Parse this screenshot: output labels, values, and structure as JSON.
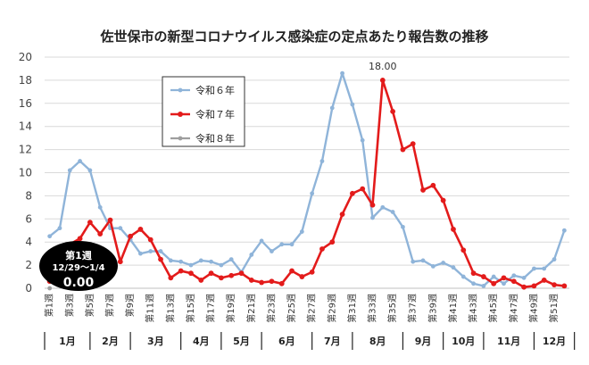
{
  "chart_data": {
    "type": "line",
    "title": "佐世保市の新型コロナウイルス感染症の定点あたり報告数の推移",
    "ylim": [
      0,
      20
    ],
    "yticks": [
      0,
      2,
      4,
      6,
      8,
      10,
      12,
      14,
      16,
      18,
      20
    ],
    "grid": true,
    "legend_position": "top-left",
    "x_tick_labels": [
      "第1週",
      "第3週",
      "第5週",
      "第7週",
      "第9週",
      "第11週",
      "第13週",
      "第15週",
      "第17週",
      "第19週",
      "第21週",
      "第23週",
      "第25週",
      "第27週",
      "第29週",
      "第31週",
      "第33週",
      "第35週",
      "第37週",
      "第39週",
      "第41週",
      "第43週",
      "第45週",
      "第47週",
      "第49週",
      "第51週"
    ],
    "months": [
      "1月",
      "2月",
      "3月",
      "4月",
      "5月",
      "6月",
      "7月",
      "8月",
      "9月",
      "10月",
      "11月",
      "12月"
    ],
    "month_week_bounds": [
      0,
      4.5,
      8.5,
      13.5,
      17.5,
      21.5,
      26.5,
      30.5,
      35.5,
      39.5,
      43.5,
      48.5,
      52.5
    ],
    "series": [
      {
        "name": "令和６年",
        "color": "#8fb4d9",
        "values": [
          4.5,
          5.2,
          10.2,
          11.0,
          10.2,
          7.0,
          5.2,
          5.2,
          4.2,
          3.0,
          3.2,
          3.2,
          2.4,
          2.3,
          2.0,
          2.4,
          2.3,
          2.0,
          2.5,
          1.4,
          2.9,
          4.1,
          3.2,
          3.8,
          3.8,
          4.9,
          8.2,
          11.0,
          15.6,
          18.6,
          15.9,
          12.8,
          6.1,
          7.0,
          6.6,
          5.3,
          2.3,
          2.4,
          1.9,
          2.2,
          1.8,
          1.0,
          0.4,
          0.2,
          1.0,
          0.4,
          1.1,
          0.9,
          1.7,
          1.7,
          2.5,
          5.0
        ]
      },
      {
        "name": "令和７年",
        "color": "#e31b1b",
        "values": [
          0.6,
          3.0,
          3.8,
          4.3,
          5.7,
          4.7,
          5.9,
          2.3,
          4.5,
          5.1,
          4.2,
          2.5,
          0.9,
          1.5,
          1.3,
          0.7,
          1.3,
          0.9,
          1.1,
          1.3,
          0.7,
          0.5,
          0.6,
          0.4,
          1.5,
          1.0,
          1.4,
          3.4,
          4.0,
          6.4,
          8.2,
          8.6,
          7.2,
          18.0,
          15.3,
          12.0,
          12.5,
          8.5,
          8.9,
          7.6,
          5.1,
          3.3,
          1.3,
          1.0,
          0.4,
          0.9,
          0.6,
          0.1,
          0.2,
          0.7,
          0.3,
          0.2
        ]
      },
      {
        "name": "令和８年",
        "color": "#9e9e9e",
        "values": [
          0.0
        ]
      }
    ],
    "annotations": [
      {
        "label": "18.00"
      }
    ],
    "callout": {
      "line1": "第1週",
      "line2": "12/29～1/4",
      "value": "0.00"
    }
  }
}
